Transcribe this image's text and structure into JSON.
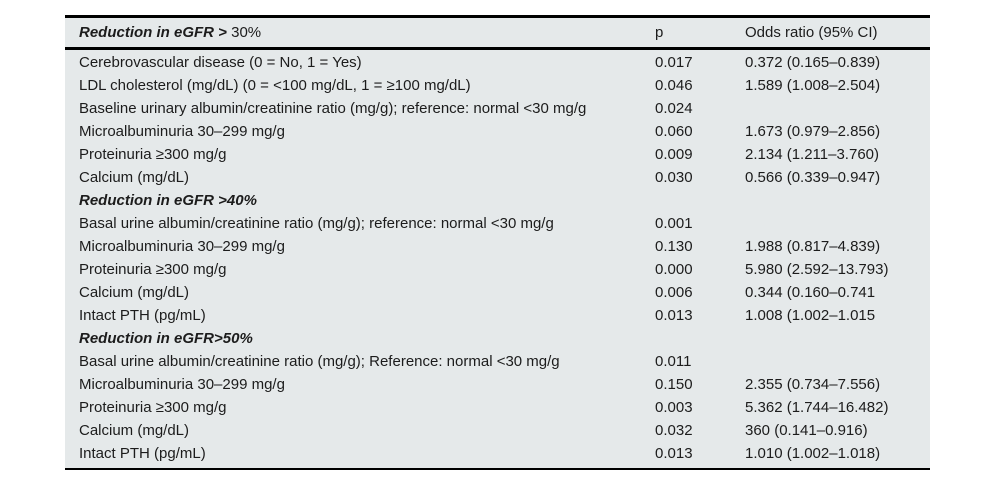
{
  "table": {
    "bg_color": "#e5e9ea",
    "border_color": "#000000",
    "header": {
      "title_bold": "Reduction in eGFR >",
      "title_regular": " 30%",
      "col_p": "p",
      "col_or": "Odds ratio (95% CI)"
    },
    "rows": [
      {
        "type": "data",
        "label": "Cerebrovascular disease (0 = No, 1 = Yes)",
        "p": "0.017",
        "or": "0.372 (0.165–0.839)"
      },
      {
        "type": "data",
        "label": "LDL cholesterol (mg/dL) (0 = <100 mg/dL, 1 = ≥100 mg/dL)",
        "p": "0.046",
        "or": "1.589 (1.008–2.504)"
      },
      {
        "type": "data",
        "label": "Baseline urinary albumin/creatinine ratio (mg/g); reference: normal <30 mg/g",
        "p": "0.024",
        "or": ""
      },
      {
        "type": "data",
        "label": "Microalbuminuria 30–299 mg/g",
        "p": "0.060",
        "or": "1.673 (0.979–2.856)"
      },
      {
        "type": "data",
        "label": "Proteinuria ≥300 mg/g",
        "p": "0.009",
        "or": "2.134 (1.211–3.760)"
      },
      {
        "type": "data",
        "label": "Calcium (mg/dL)",
        "p": "0.030",
        "or": "0.566 (0.339–0.947)"
      },
      {
        "type": "section",
        "label": "Reduction in eGFR >40%",
        "p": "",
        "or": ""
      },
      {
        "type": "data",
        "label": "Basal urine albumin/creatinine ratio (mg/g); reference: normal <30 mg/g",
        "p": "0.001",
        "or": ""
      },
      {
        "type": "data",
        "label": "Microalbuminuria 30–299 mg/g",
        "p": "0.130",
        "or": "1.988 (0.817–4.839)"
      },
      {
        "type": "data",
        "label": "Proteinuria ≥300 mg/g",
        "p": "0.000",
        "or": "5.980 (2.592–13.793)"
      },
      {
        "type": "data",
        "label": "Calcium (mg/dL)",
        "p": "0.006",
        "or": "0.344 (0.160–0.741"
      },
      {
        "type": "data",
        "label": "Intact PTH (pg/mL)",
        "p": "0.013",
        "or": "1.008 (1.002–1.015"
      },
      {
        "type": "section",
        "label": "Reduction in eGFR>50%",
        "p": "",
        "or": ""
      },
      {
        "type": "data",
        "label": "Basal urine albumin/creatinine ratio (mg/g); Reference: normal <30 mg/g",
        "p": "0.011",
        "or": ""
      },
      {
        "type": "data",
        "label": "Microalbuminuria 30–299 mg/g",
        "p": "0.150",
        "or": "2.355 (0.734–7.556)"
      },
      {
        "type": "data",
        "label": "Proteinuria ≥300 mg/g",
        "p": "0.003",
        "or": "5.362 (1.744–16.482)"
      },
      {
        "type": "data",
        "label": "Calcium (mg/dL)",
        "p": "0.032",
        "or": "360 (0.141–0.916)"
      },
      {
        "type": "data",
        "label": "Intact PTH (pg/mL)",
        "p": "0.013",
        "or": "1.010 (1.002–1.018)"
      }
    ]
  }
}
